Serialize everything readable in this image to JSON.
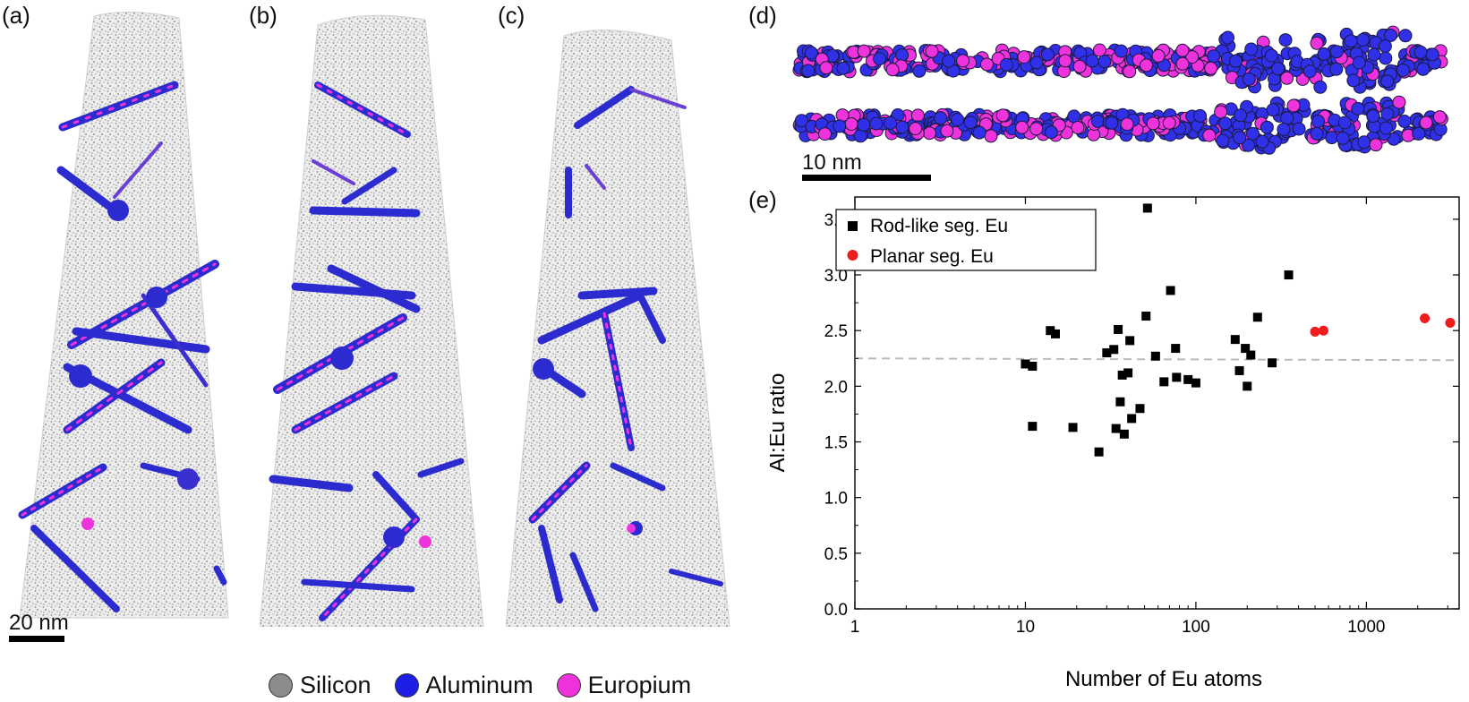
{
  "panels": {
    "a": "(a)",
    "b": "(b)",
    "c": "(c)",
    "d": "(d)",
    "e": "(e)"
  },
  "scalebars": {
    "tips": "20 nm",
    "rods": "10 nm"
  },
  "atom_legend": [
    {
      "label": "Silicon",
      "color": "#8c8c8c"
    },
    {
      "label": "Aluminum",
      "color": "#1e1ee6"
    },
    {
      "label": "Europium",
      "color": "#ee33dd"
    }
  ],
  "chart_data": {
    "type": "scatter",
    "xlabel": "Number of Eu atoms",
    "ylabel": "Al:Eu ratio",
    "xscale": "log",
    "xlim": [
      1,
      3500
    ],
    "ylim": [
      0,
      3.7
    ],
    "xticks": [
      "1",
      "10",
      "100",
      "1000"
    ],
    "yticks": [
      "0.0",
      "0.5",
      "1.0",
      "1.5",
      "2.0",
      "2.5",
      "3.0",
      "3.5"
    ],
    "reference_line_y": 2.25,
    "legend_position": "top-left",
    "series": [
      {
        "name": "Rod-like seg. Eu",
        "color": "#000000",
        "marker": "square",
        "points": [
          [
            10,
            2.2
          ],
          [
            11,
            2.18
          ],
          [
            11,
            1.64
          ],
          [
            14,
            2.5
          ],
          [
            15,
            2.47
          ],
          [
            19,
            1.63
          ],
          [
            27,
            1.41
          ],
          [
            30,
            2.3
          ],
          [
            33,
            2.33
          ],
          [
            34,
            1.62
          ],
          [
            35,
            2.51
          ],
          [
            36,
            1.86
          ],
          [
            37,
            2.1
          ],
          [
            38,
            1.57
          ],
          [
            40,
            2.12
          ],
          [
            41,
            2.41
          ],
          [
            42,
            1.71
          ],
          [
            47,
            1.8
          ],
          [
            51,
            2.63
          ],
          [
            52,
            3.6
          ],
          [
            58,
            2.27
          ],
          [
            65,
            2.04
          ],
          [
            71,
            2.86
          ],
          [
            76,
            2.34
          ],
          [
            77,
            2.08
          ],
          [
            90,
            2.06
          ],
          [
            100,
            2.03
          ],
          [
            170,
            2.42
          ],
          [
            180,
            2.14
          ],
          [
            195,
            2.34
          ],
          [
            200,
            2.0
          ],
          [
            210,
            2.28
          ],
          [
            230,
            2.62
          ],
          [
            280,
            2.21
          ],
          [
            350,
            3.0
          ]
        ]
      },
      {
        "name": "Planar seg. Eu",
        "color": "#ee1c1c",
        "marker": "circle",
        "points": [
          [
            500,
            2.49
          ],
          [
            560,
            2.5
          ],
          [
            2200,
            2.61
          ],
          [
            3100,
            2.57
          ]
        ]
      }
    ]
  }
}
